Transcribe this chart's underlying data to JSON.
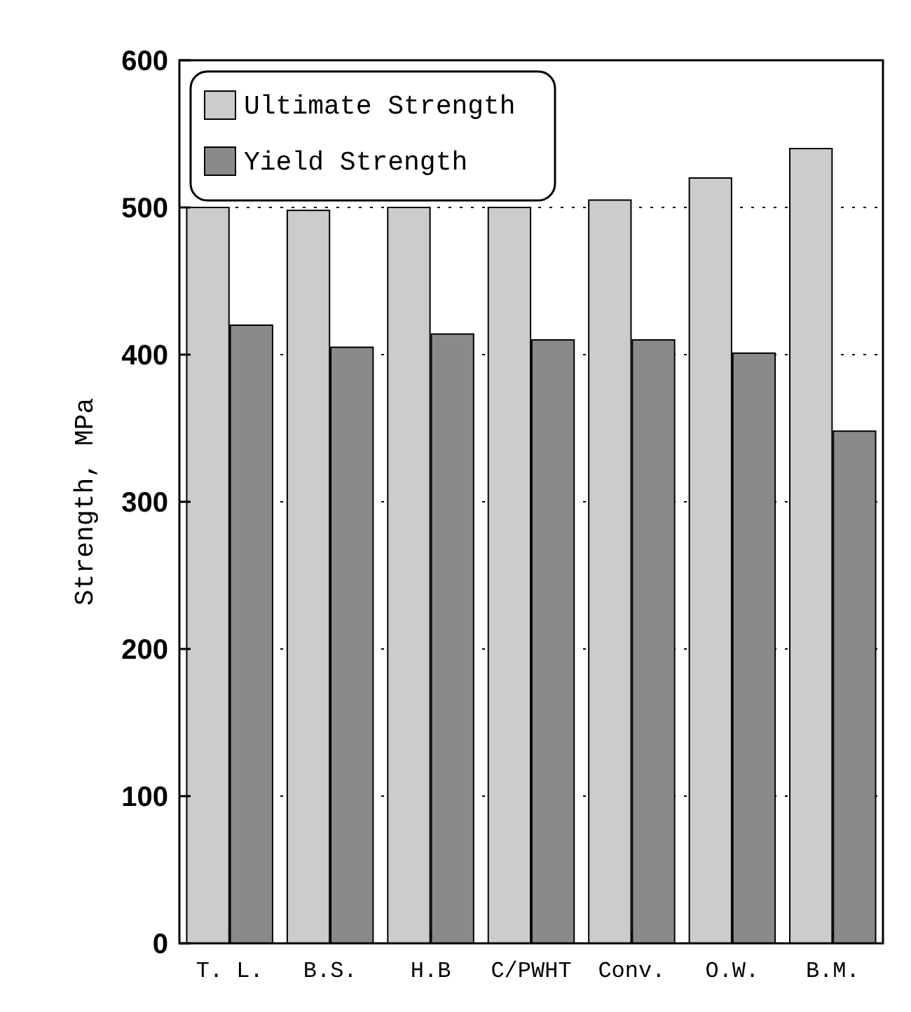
{
  "chart_data": {
    "type": "bar",
    "ylabel": "Strength, MPa",
    "categories": [
      "T. L.",
      "B.S.",
      "H.B",
      "C/PWHT",
      "Conv.",
      "O.W.",
      "B.M."
    ],
    "series": [
      {
        "name": "Ultimate Strength",
        "color": "#cccccc",
        "values": [
          500,
          498,
          500,
          500,
          505,
          520,
          540
        ]
      },
      {
        "name": "Yield Strength",
        "color": "#8a8a8a",
        "values": [
          420,
          405,
          414,
          410,
          410,
          401,
          348
        ]
      }
    ],
    "ylim": [
      0,
      600
    ],
    "yticks": [
      0,
      100,
      200,
      300,
      400,
      500,
      600
    ],
    "grid": "y",
    "legend": "top left"
  }
}
